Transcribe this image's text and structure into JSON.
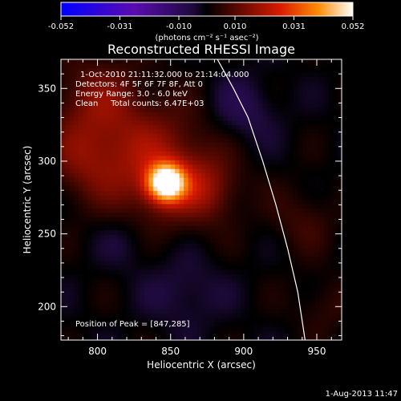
{
  "chart_data": {
    "type": "heatmap",
    "title": "Reconstructed RHESSI Image",
    "xlabel": "Heliocentric X (arcsec)",
    "ylabel": "Heliocentric Y (arcsec)",
    "xlim": [
      775,
      967
    ],
    "ylim": [
      177,
      370
    ],
    "xticks": [
      800,
      850,
      900,
      950
    ],
    "yticks": [
      200,
      250,
      300,
      350
    ],
    "colorbar": {
      "ticks": [
        -0.052,
        -0.031,
        -0.01,
        0.01,
        0.031,
        0.052
      ],
      "tick_labels": [
        "-0.052",
        "-0.031",
        "-0.010",
        "0.010",
        "0.031",
        "0.052"
      ],
      "unit_label": "(photons cm⁻² s⁻¹ asec⁻²)",
      "colors": [
        "#0000ff",
        "#5a0cb0",
        "#1e0a3c",
        "#000000",
        "#6a0a00",
        "#d81a00",
        "#ff8a00",
        "#ffffff"
      ]
    },
    "annotations": [
      "1-Oct-2010 21:11:32.000 to 21:14:04.000",
      "Detectors: 4F 5F 6F 7F 8F, Att 0",
      "Energy Range: 3.0 - 6.0 keV",
      "Clean     Total counts: 6.47E+03"
    ],
    "peak_text": "Position of Peak = [847,285]",
    "peak": [
      847,
      285
    ],
    "sources": [
      {
        "x": 847,
        "y": 285,
        "sigma": 9,
        "amp": 1.0
      },
      {
        "x": 840,
        "y": 296,
        "sigma": 28,
        "amp": 0.35
      },
      {
        "x": 800,
        "y": 340,
        "sigma": 22,
        "amp": 0.25
      },
      {
        "x": 790,
        "y": 300,
        "sigma": 18,
        "amp": 0.2
      },
      {
        "x": 875,
        "y": 280,
        "sigma": 15,
        "amp": 0.22
      },
      {
        "x": 940,
        "y": 260,
        "sigma": 16,
        "amp": 0.12
      },
      {
        "x": 955,
        "y": 200,
        "sigma": 14,
        "amp": 0.1
      },
      {
        "x": 900,
        "y": 335,
        "sigma": 16,
        "amp": -0.15
      },
      {
        "x": 820,
        "y": 245,
        "sigma": 14,
        "amp": -0.1
      },
      {
        "x": 860,
        "y": 210,
        "sigma": 18,
        "amp": -0.12
      }
    ],
    "limb": [
      [
        882,
        370
      ],
      [
        893,
        350
      ],
      [
        903,
        330
      ],
      [
        913,
        300
      ],
      [
        922,
        270
      ],
      [
        930,
        240
      ],
      [
        937,
        210
      ],
      [
        942,
        177
      ]
    ]
  },
  "footer": {
    "timestamp": "1-Aug-2013 11:47"
  }
}
